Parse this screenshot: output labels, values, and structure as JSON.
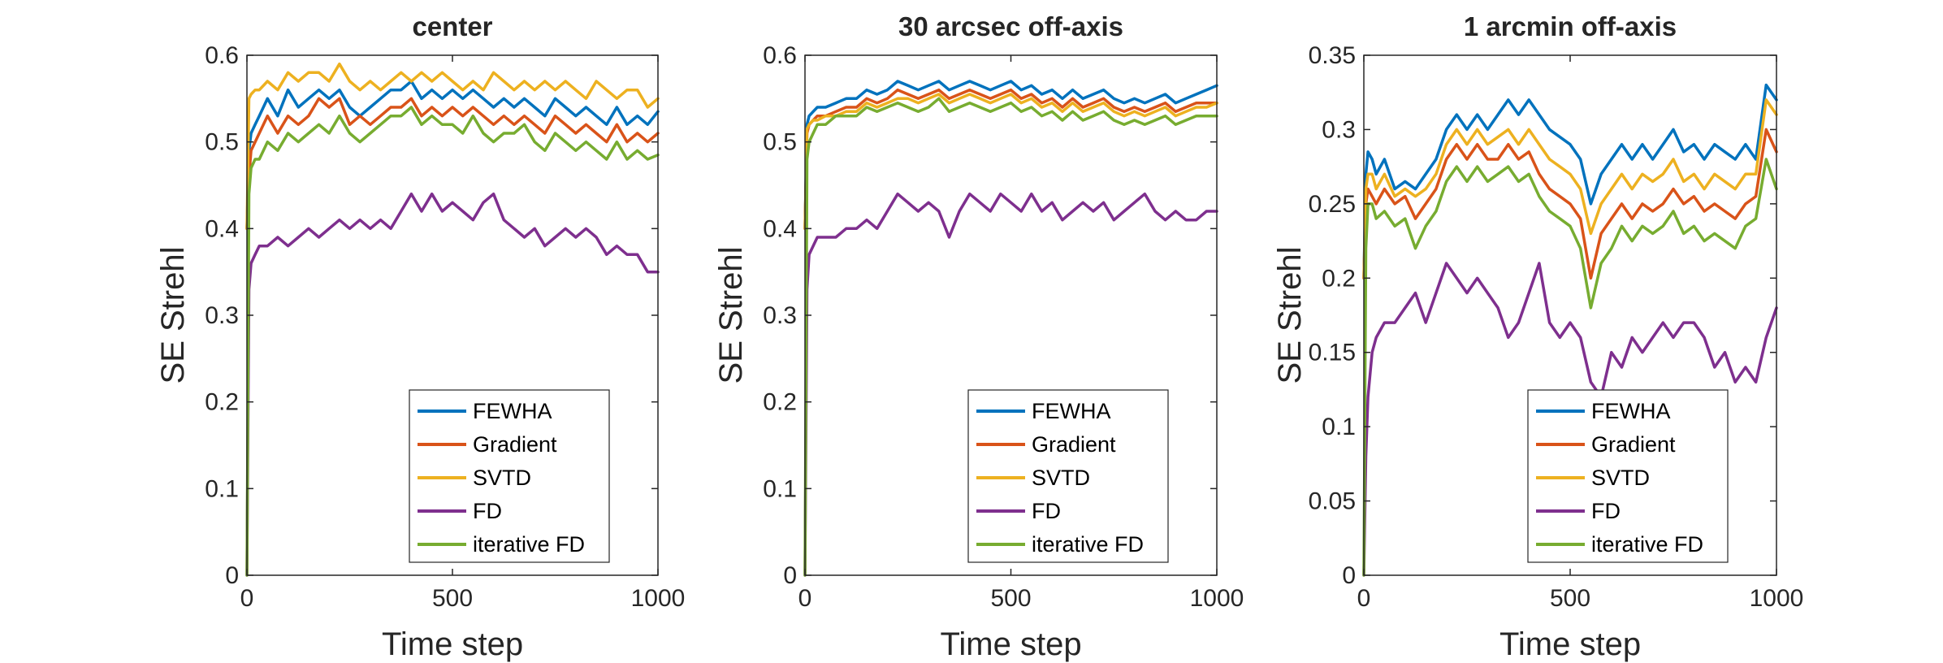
{
  "colors": {
    "FEWHA": "#0072BD",
    "Gradient": "#D95319",
    "SVTD": "#EDB120",
    "FD": "#7E2F8E",
    "iterative FD": "#77AC30",
    "axis": "#262626"
  },
  "chart_data": [
    {
      "type": "line",
      "title": "center",
      "xlabel": "Time step",
      "ylabel": "SE Strehl",
      "xlim": [
        0,
        1000
      ],
      "ylim": [
        0,
        0.6
      ],
      "xticks": [
        "0",
        "500",
        "1000"
      ],
      "yticks": [
        "0",
        "0.1",
        "0.2",
        "0.3",
        "0.4",
        "0.5",
        "0.6"
      ],
      "legend_position": "bottom-right",
      "grid": false,
      "x": [
        0,
        5,
        10,
        20,
        30,
        50,
        75,
        100,
        125,
        150,
        175,
        200,
        225,
        250,
        275,
        300,
        325,
        350,
        375,
        400,
        425,
        450,
        475,
        500,
        525,
        550,
        575,
        600,
        625,
        650,
        675,
        700,
        725,
        750,
        775,
        800,
        825,
        850,
        875,
        900,
        925,
        950,
        975,
        1000
      ],
      "series": [
        {
          "name": "FEWHA",
          "values": [
            0.4,
            0.49,
            0.51,
            0.52,
            0.53,
            0.55,
            0.53,
            0.56,
            0.54,
            0.55,
            0.56,
            0.55,
            0.56,
            0.54,
            0.53,
            0.54,
            0.55,
            0.56,
            0.56,
            0.57,
            0.55,
            0.56,
            0.55,
            0.56,
            0.55,
            0.56,
            0.55,
            0.54,
            0.55,
            0.54,
            0.55,
            0.54,
            0.53,
            0.55,
            0.54,
            0.53,
            0.54,
            0.53,
            0.52,
            0.54,
            0.52,
            0.53,
            0.52,
            0.535
          ]
        },
        {
          "name": "Gradient",
          "values": [
            0.4,
            0.46,
            0.49,
            0.5,
            0.51,
            0.53,
            0.51,
            0.53,
            0.52,
            0.53,
            0.55,
            0.54,
            0.55,
            0.52,
            0.53,
            0.52,
            0.53,
            0.54,
            0.54,
            0.55,
            0.53,
            0.54,
            0.53,
            0.54,
            0.53,
            0.54,
            0.53,
            0.52,
            0.53,
            0.52,
            0.53,
            0.52,
            0.51,
            0.53,
            0.52,
            0.51,
            0.52,
            0.51,
            0.5,
            0.52,
            0.5,
            0.51,
            0.5,
            0.51
          ]
        },
        {
          "name": "SVTD",
          "values": [
            0.4,
            0.55,
            0.555,
            0.56,
            0.56,
            0.57,
            0.56,
            0.58,
            0.57,
            0.58,
            0.58,
            0.57,
            0.59,
            0.57,
            0.56,
            0.57,
            0.56,
            0.57,
            0.58,
            0.57,
            0.58,
            0.57,
            0.58,
            0.57,
            0.56,
            0.57,
            0.56,
            0.58,
            0.57,
            0.56,
            0.57,
            0.56,
            0.57,
            0.56,
            0.57,
            0.56,
            0.55,
            0.57,
            0.56,
            0.55,
            0.56,
            0.56,
            0.54,
            0.55
          ]
        },
        {
          "name": "FD",
          "values": [
            0.0,
            0.33,
            0.36,
            0.37,
            0.38,
            0.38,
            0.39,
            0.38,
            0.39,
            0.4,
            0.39,
            0.4,
            0.41,
            0.4,
            0.41,
            0.4,
            0.41,
            0.4,
            0.42,
            0.44,
            0.42,
            0.44,
            0.42,
            0.43,
            0.42,
            0.41,
            0.43,
            0.44,
            0.41,
            0.4,
            0.39,
            0.4,
            0.38,
            0.39,
            0.4,
            0.39,
            0.4,
            0.39,
            0.37,
            0.38,
            0.37,
            0.37,
            0.35,
            0.35
          ]
        },
        {
          "name": "iterative FD",
          "values": [
            0.0,
            0.44,
            0.47,
            0.48,
            0.48,
            0.5,
            0.49,
            0.51,
            0.5,
            0.51,
            0.52,
            0.51,
            0.53,
            0.51,
            0.5,
            0.51,
            0.52,
            0.53,
            0.53,
            0.54,
            0.52,
            0.53,
            0.52,
            0.52,
            0.51,
            0.53,
            0.51,
            0.5,
            0.51,
            0.51,
            0.52,
            0.5,
            0.49,
            0.51,
            0.5,
            0.49,
            0.5,
            0.49,
            0.48,
            0.5,
            0.48,
            0.49,
            0.48,
            0.485
          ]
        }
      ]
    },
    {
      "type": "line",
      "title": "30 arcsec off-axis",
      "xlabel": "Time step",
      "ylabel": "SE Strehl",
      "xlim": [
        0,
        1000
      ],
      "ylim": [
        0,
        0.6
      ],
      "xticks": [
        "0",
        "500",
        "1000"
      ],
      "yticks": [
        "0",
        "0.1",
        "0.2",
        "0.3",
        "0.4",
        "0.5",
        "0.6"
      ],
      "legend_position": "bottom-right",
      "grid": false,
      "x": [
        0,
        5,
        10,
        20,
        30,
        50,
        75,
        100,
        125,
        150,
        175,
        200,
        225,
        250,
        275,
        300,
        325,
        350,
        375,
        400,
        425,
        450,
        475,
        500,
        525,
        550,
        575,
        600,
        625,
        650,
        675,
        700,
        725,
        750,
        775,
        800,
        825,
        850,
        875,
        900,
        925,
        950,
        975,
        1000
      ],
      "series": [
        {
          "name": "FEWHA",
          "values": [
            0.4,
            0.52,
            0.53,
            0.535,
            0.54,
            0.54,
            0.545,
            0.55,
            0.55,
            0.56,
            0.555,
            0.56,
            0.57,
            0.565,
            0.56,
            0.565,
            0.57,
            0.56,
            0.565,
            0.57,
            0.565,
            0.56,
            0.565,
            0.57,
            0.56,
            0.565,
            0.555,
            0.56,
            0.55,
            0.56,
            0.55,
            0.555,
            0.56,
            0.55,
            0.545,
            0.55,
            0.545,
            0.55,
            0.555,
            0.545,
            0.55,
            0.555,
            0.56,
            0.565
          ]
        },
        {
          "name": "Gradient",
          "values": [
            0.4,
            0.51,
            0.52,
            0.525,
            0.53,
            0.53,
            0.535,
            0.54,
            0.54,
            0.55,
            0.545,
            0.55,
            0.56,
            0.555,
            0.55,
            0.555,
            0.56,
            0.55,
            0.555,
            0.56,
            0.555,
            0.55,
            0.555,
            0.56,
            0.55,
            0.555,
            0.545,
            0.55,
            0.54,
            0.55,
            0.54,
            0.545,
            0.55,
            0.54,
            0.535,
            0.54,
            0.535,
            0.54,
            0.545,
            0.535,
            0.54,
            0.545,
            0.545,
            0.545
          ]
        },
        {
          "name": "SVTD",
          "values": [
            0.4,
            0.515,
            0.52,
            0.525,
            0.525,
            0.53,
            0.53,
            0.535,
            0.535,
            0.545,
            0.54,
            0.545,
            0.55,
            0.55,
            0.545,
            0.55,
            0.555,
            0.545,
            0.55,
            0.555,
            0.55,
            0.545,
            0.55,
            0.555,
            0.545,
            0.55,
            0.54,
            0.545,
            0.535,
            0.545,
            0.535,
            0.54,
            0.545,
            0.535,
            0.53,
            0.535,
            0.53,
            0.535,
            0.54,
            0.53,
            0.535,
            0.54,
            0.54,
            0.545
          ]
        },
        {
          "name": "FD",
          "values": [
            0.0,
            0.33,
            0.37,
            0.38,
            0.39,
            0.39,
            0.39,
            0.4,
            0.4,
            0.41,
            0.4,
            0.42,
            0.44,
            0.43,
            0.42,
            0.43,
            0.42,
            0.39,
            0.42,
            0.44,
            0.43,
            0.42,
            0.44,
            0.43,
            0.42,
            0.44,
            0.42,
            0.43,
            0.41,
            0.42,
            0.43,
            0.42,
            0.43,
            0.41,
            0.42,
            0.43,
            0.44,
            0.42,
            0.41,
            0.42,
            0.41,
            0.41,
            0.42,
            0.42
          ]
        },
        {
          "name": "iterative FD",
          "values": [
            0.0,
            0.48,
            0.5,
            0.51,
            0.52,
            0.52,
            0.53,
            0.53,
            0.53,
            0.54,
            0.535,
            0.54,
            0.545,
            0.54,
            0.535,
            0.54,
            0.55,
            0.535,
            0.54,
            0.545,
            0.54,
            0.535,
            0.54,
            0.545,
            0.535,
            0.54,
            0.53,
            0.535,
            0.525,
            0.535,
            0.525,
            0.53,
            0.535,
            0.525,
            0.52,
            0.525,
            0.52,
            0.525,
            0.53,
            0.52,
            0.525,
            0.53,
            0.53,
            0.53
          ]
        }
      ]
    },
    {
      "type": "line",
      "title": "1 arcmin off-axis",
      "xlabel": "Time step",
      "ylabel": "SE Strehl",
      "xlim": [
        0,
        1000
      ],
      "ylim": [
        0,
        0.35
      ],
      "xticks": [
        "0",
        "500",
        "1000"
      ],
      "yticks": [
        "0",
        "0.05",
        "0.1",
        "0.15",
        "0.2",
        "0.25",
        "0.3",
        "0.35"
      ],
      "legend_position": "bottom-right",
      "grid": false,
      "x": [
        0,
        5,
        10,
        20,
        30,
        50,
        75,
        100,
        125,
        150,
        175,
        200,
        225,
        250,
        275,
        300,
        325,
        350,
        375,
        400,
        425,
        450,
        475,
        500,
        525,
        550,
        575,
        600,
        625,
        650,
        675,
        700,
        725,
        750,
        775,
        800,
        825,
        850,
        875,
        900,
        925,
        950,
        975,
        1000
      ],
      "series": [
        {
          "name": "FEWHA",
          "values": [
            0.2,
            0.27,
            0.285,
            0.28,
            0.27,
            0.28,
            0.26,
            0.265,
            0.26,
            0.27,
            0.28,
            0.3,
            0.31,
            0.3,
            0.31,
            0.3,
            0.31,
            0.32,
            0.31,
            0.32,
            0.31,
            0.3,
            0.295,
            0.29,
            0.28,
            0.25,
            0.27,
            0.28,
            0.29,
            0.28,
            0.29,
            0.28,
            0.29,
            0.3,
            0.285,
            0.29,
            0.28,
            0.29,
            0.285,
            0.28,
            0.29,
            0.28,
            0.33,
            0.32
          ]
        },
        {
          "name": "Gradient",
          "values": [
            0.2,
            0.25,
            0.26,
            0.255,
            0.25,
            0.26,
            0.25,
            0.255,
            0.24,
            0.25,
            0.26,
            0.28,
            0.29,
            0.28,
            0.29,
            0.28,
            0.28,
            0.29,
            0.28,
            0.285,
            0.27,
            0.26,
            0.255,
            0.25,
            0.24,
            0.2,
            0.23,
            0.24,
            0.25,
            0.24,
            0.25,
            0.245,
            0.25,
            0.26,
            0.25,
            0.255,
            0.245,
            0.25,
            0.245,
            0.24,
            0.25,
            0.255,
            0.3,
            0.285
          ]
        },
        {
          "name": "SVTD",
          "values": [
            0.2,
            0.26,
            0.27,
            0.27,
            0.26,
            0.27,
            0.255,
            0.26,
            0.255,
            0.26,
            0.27,
            0.29,
            0.3,
            0.29,
            0.3,
            0.29,
            0.295,
            0.3,
            0.29,
            0.3,
            0.29,
            0.28,
            0.275,
            0.27,
            0.26,
            0.23,
            0.25,
            0.26,
            0.27,
            0.26,
            0.27,
            0.265,
            0.27,
            0.28,
            0.265,
            0.27,
            0.26,
            0.27,
            0.265,
            0.26,
            0.27,
            0.27,
            0.32,
            0.31
          ]
        },
        {
          "name": "FD",
          "values": [
            0.0,
            0.08,
            0.12,
            0.15,
            0.16,
            0.17,
            0.17,
            0.18,
            0.19,
            0.17,
            0.19,
            0.21,
            0.2,
            0.19,
            0.2,
            0.19,
            0.18,
            0.16,
            0.17,
            0.19,
            0.21,
            0.17,
            0.16,
            0.17,
            0.16,
            0.13,
            0.12,
            0.15,
            0.14,
            0.16,
            0.15,
            0.16,
            0.17,
            0.16,
            0.17,
            0.17,
            0.16,
            0.14,
            0.15,
            0.13,
            0.14,
            0.13,
            0.16,
            0.18
          ]
        },
        {
          "name": "iterative FD",
          "values": [
            0.0,
            0.22,
            0.25,
            0.25,
            0.24,
            0.245,
            0.235,
            0.24,
            0.22,
            0.235,
            0.245,
            0.265,
            0.275,
            0.265,
            0.275,
            0.265,
            0.27,
            0.275,
            0.265,
            0.27,
            0.255,
            0.245,
            0.24,
            0.235,
            0.22,
            0.18,
            0.21,
            0.22,
            0.235,
            0.225,
            0.235,
            0.23,
            0.235,
            0.245,
            0.23,
            0.235,
            0.225,
            0.23,
            0.225,
            0.22,
            0.235,
            0.24,
            0.28,
            0.26
          ]
        }
      ]
    }
  ]
}
